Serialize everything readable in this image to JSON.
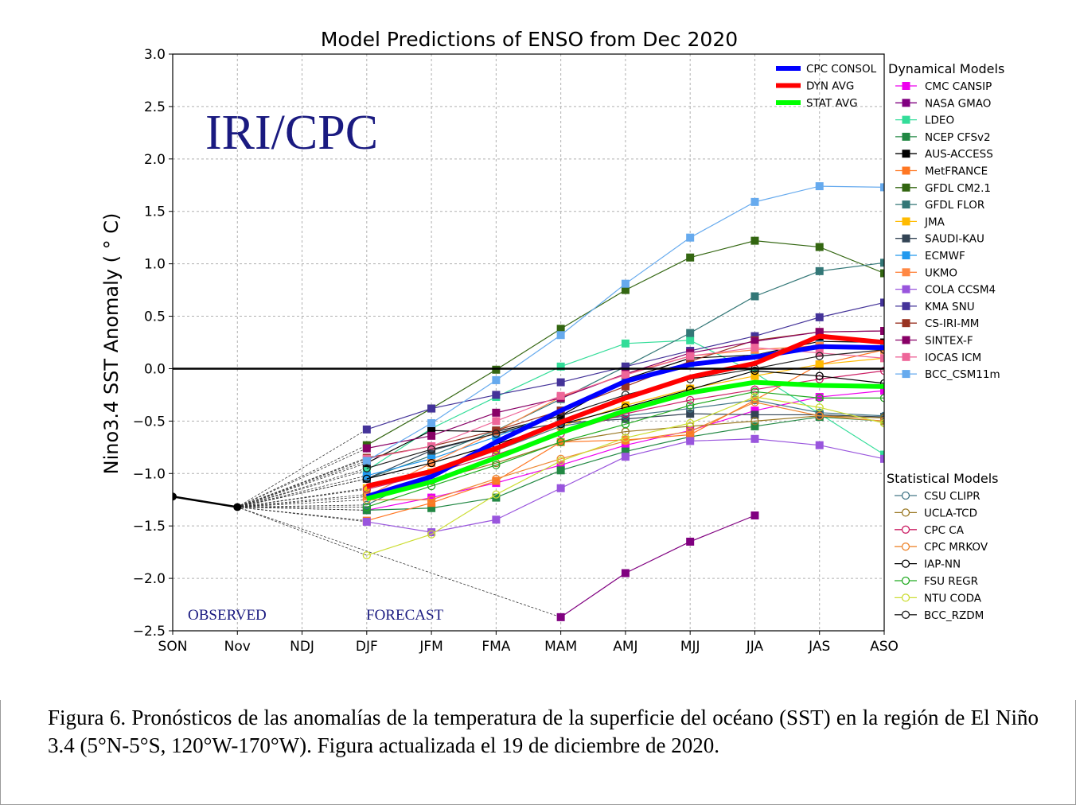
{
  "caption": "Figura 6. Pronósticos de las anomalías de la temperatura de la superficie del océano (SST) en la región de El Niño 3.4 (5°N-5°S, 120°W-170°W). Figura actualizada el 19 de diciembre de 2020.",
  "chart_data": {
    "type": "line",
    "title": "Model Predictions of ENSO from Dec 2020",
    "ylabel": "Nino3.4 SST Anomaly ( ° C)",
    "xlabel": "",
    "ylim": [
      -2.5,
      3.0
    ],
    "yticks": [
      "3.0",
      "2.5",
      "2.0",
      "1.5",
      "1.0",
      "0.5",
      "0.0",
      "−0.5",
      "−1.0",
      "−1.5",
      "−2.0",
      "−2.5"
    ],
    "categories": [
      "SON",
      "Nov",
      "NDJ",
      "DJF",
      "JFM",
      "FMA",
      "MAM",
      "AMJ",
      "MJJ",
      "JJA",
      "JAS",
      "ASO"
    ],
    "grid": true,
    "watermark": "IRI/CPC",
    "annotations": [
      "OBSERVED",
      "FORECAST"
    ],
    "legend_position": "right",
    "legend_dynamical_title": "Dynamical Models",
    "legend_statistical_title": "Statistical Models",
    "observed": {
      "x_index": [
        0,
        1
      ],
      "values": [
        -1.22,
        -1.32
      ]
    },
    "averages": [
      {
        "name": "CPC CONSOL",
        "color": "#0000ff",
        "values": [
          -1.22,
          -1.03,
          -0.7,
          -0.4,
          -0.12,
          0.04,
          0.11,
          0.21,
          0.2
        ]
      },
      {
        "name": "DYN AVG",
        "color": "#ff0000",
        "values": [
          -1.12,
          -0.98,
          -0.76,
          -0.51,
          -0.28,
          -0.08,
          0.05,
          0.31,
          0.25
        ]
      },
      {
        "name": "STAT AVG",
        "color": "#00ff00",
        "values": [
          -1.24,
          -1.08,
          -0.85,
          -0.61,
          -0.4,
          -0.23,
          -0.13,
          -0.16,
          -0.17
        ]
      }
    ],
    "dynamical": [
      {
        "name": "CMC CANSIP",
        "color": "#ee00ee",
        "values": [
          -1.35,
          -1.23,
          -1.09,
          -0.92,
          -0.73,
          -0.59,
          -0.4,
          -0.27,
          -0.21
        ]
      },
      {
        "name": "NASA GMAO",
        "color": "#800080",
        "values": [
          null,
          null,
          null,
          -2.37,
          -1.95,
          -1.65,
          -1.4,
          null,
          null
        ]
      },
      {
        "name": "LDEO",
        "color": "#33dd99",
        "values": [
          -0.97,
          -0.57,
          -0.27,
          0.02,
          0.24,
          0.27,
          -0.04,
          -0.43,
          -0.82
        ]
      },
      {
        "name": "NCEP CFSv2",
        "color": "#228844",
        "values": [
          -1.35,
          -1.33,
          -1.23,
          -0.97,
          -0.79,
          -0.65,
          -0.55,
          -0.46,
          -0.5
        ]
      },
      {
        "name": "AUS-ACCESS",
        "color": "#000000",
        "values": [
          -0.9,
          -0.59,
          -0.6,
          -0.45,
          -0.1,
          0.1,
          0.13,
          0.26,
          0.25
        ]
      },
      {
        "name": "MetFRANCE",
        "color": "#ff7722",
        "values": [
          -1.45,
          -1.28,
          -1.07,
          -0.7,
          -0.68,
          -0.63,
          -0.3,
          0.04,
          0.18
        ]
      },
      {
        "name": "GFDL CM2.1",
        "color": "#336611",
        "values": [
          -0.73,
          -0.38,
          -0.01,
          0.38,
          0.75,
          1.06,
          1.22,
          1.16,
          0.91
        ]
      },
      {
        "name": "GFDL FLOR",
        "color": "#337777",
        "values": [
          -1.05,
          -0.83,
          -0.59,
          -0.29,
          0.02,
          0.34,
          0.69,
          0.93,
          1.01
        ]
      },
      {
        "name": "JMA",
        "color": "#ffbb00",
        "values": [
          -1.14,
          -0.99,
          -0.78,
          -0.55,
          -0.35,
          -0.19,
          -0.07,
          0.04,
          0.1
        ]
      },
      {
        "name": "SAUDI-KAU",
        "color": "#334455",
        "values": [
          -1.05,
          -0.78,
          -0.62,
          -0.52,
          -0.48,
          -0.43,
          -0.44,
          -0.44,
          -0.46
        ]
      },
      {
        "name": "ECMWF",
        "color": "#2299ee",
        "values": [
          -1.02,
          -0.86,
          -0.65,
          -0.4,
          -0.14,
          0.05,
          0.13,
          0.23,
          0.2
        ]
      },
      {
        "name": "UKMO",
        "color": "#ff8844",
        "values": [
          -1.22,
          -0.9,
          -0.6,
          -0.27,
          -0.05,
          0.12,
          0.18,
          0.22,
          0.18
        ]
      },
      {
        "name": "COLA CCSM4",
        "color": "#9955dd",
        "values": [
          -1.46,
          -1.56,
          -1.44,
          -1.14,
          -0.84,
          -0.69,
          -0.67,
          -0.73,
          -0.86
        ]
      },
      {
        "name": "KMA SNU",
        "color": "#443399",
        "values": [
          -0.58,
          -0.38,
          -0.25,
          -0.13,
          0.02,
          0.17,
          0.31,
          0.49,
          0.63
        ]
      },
      {
        "name": "CS-IRI-MM",
        "color": "#993322",
        "values": [
          -0.85,
          -0.74,
          -0.59,
          -0.4,
          -0.17,
          0.07,
          0.27,
          0.35,
          0.36
        ]
      },
      {
        "name": "SINTEX-F",
        "color": "#880066",
        "values": [
          -0.76,
          -0.64,
          -0.42,
          -0.28,
          -0.05,
          0.15,
          0.26,
          0.35,
          0.36
        ]
      },
      {
        "name": "IOCAS ICM",
        "color": "#ee6699",
        "values": [
          -0.86,
          -0.74,
          -0.5,
          -0.26,
          -0.06,
          0.12,
          0.2,
          0.15,
          0.1
        ]
      },
      {
        "name": "BCC_CSM11m",
        "color": "#66aaee",
        "values": [
          -0.88,
          -0.52,
          -0.11,
          0.32,
          0.81,
          1.25,
          1.59,
          1.74,
          1.73
        ]
      }
    ],
    "statistical": [
      {
        "name": "CSU CLIPR",
        "color": "#447788",
        "values": [
          -1.3,
          -1.0,
          -0.78,
          -0.55,
          -0.45,
          -0.38,
          -0.3,
          -0.42,
          -0.45
        ]
      },
      {
        "name": "UCLA-TCD",
        "color": "#997722",
        "values": [
          -1.2,
          -1.07,
          -0.9,
          -0.7,
          -0.6,
          -0.55,
          -0.5,
          -0.45,
          -0.47
        ]
      },
      {
        "name": "CPC CA",
        "color": "#cc2266",
        "values": [
          -1.15,
          -1.0,
          -0.82,
          -0.62,
          -0.43,
          -0.3,
          -0.2,
          -0.1,
          -0.02
        ]
      },
      {
        "name": "CPC MRKOV",
        "color": "#ee8833",
        "values": [
          -1.25,
          -1.25,
          -1.05,
          -0.86,
          -0.69,
          -0.6,
          -0.32,
          -0.45,
          -0.5
        ]
      },
      {
        "name": "IAP-NN",
        "color": "#000000",
        "values": [
          -1.05,
          -0.9,
          -0.72,
          -0.53,
          -0.37,
          -0.2,
          -0.02,
          -0.07,
          -0.14
        ]
      },
      {
        "name": "FSU REGR",
        "color": "#22aa22",
        "values": [
          -1.32,
          -1.12,
          -0.92,
          -0.7,
          -0.53,
          -0.35,
          -0.22,
          -0.28,
          -0.28
        ]
      },
      {
        "name": "NTU CODA",
        "color": "#ccdd33",
        "values": [
          -1.78,
          -1.58,
          -1.2,
          -0.88,
          -0.66,
          -0.52,
          -0.27,
          -0.37,
          -0.52
        ]
      },
      {
        "name": "BCC_RZDM",
        "color": "#222222",
        "values": [
          -0.95,
          -0.77,
          -0.62,
          -0.45,
          -0.25,
          -0.1,
          0.0,
          0.12,
          0.18
        ]
      }
    ]
  }
}
